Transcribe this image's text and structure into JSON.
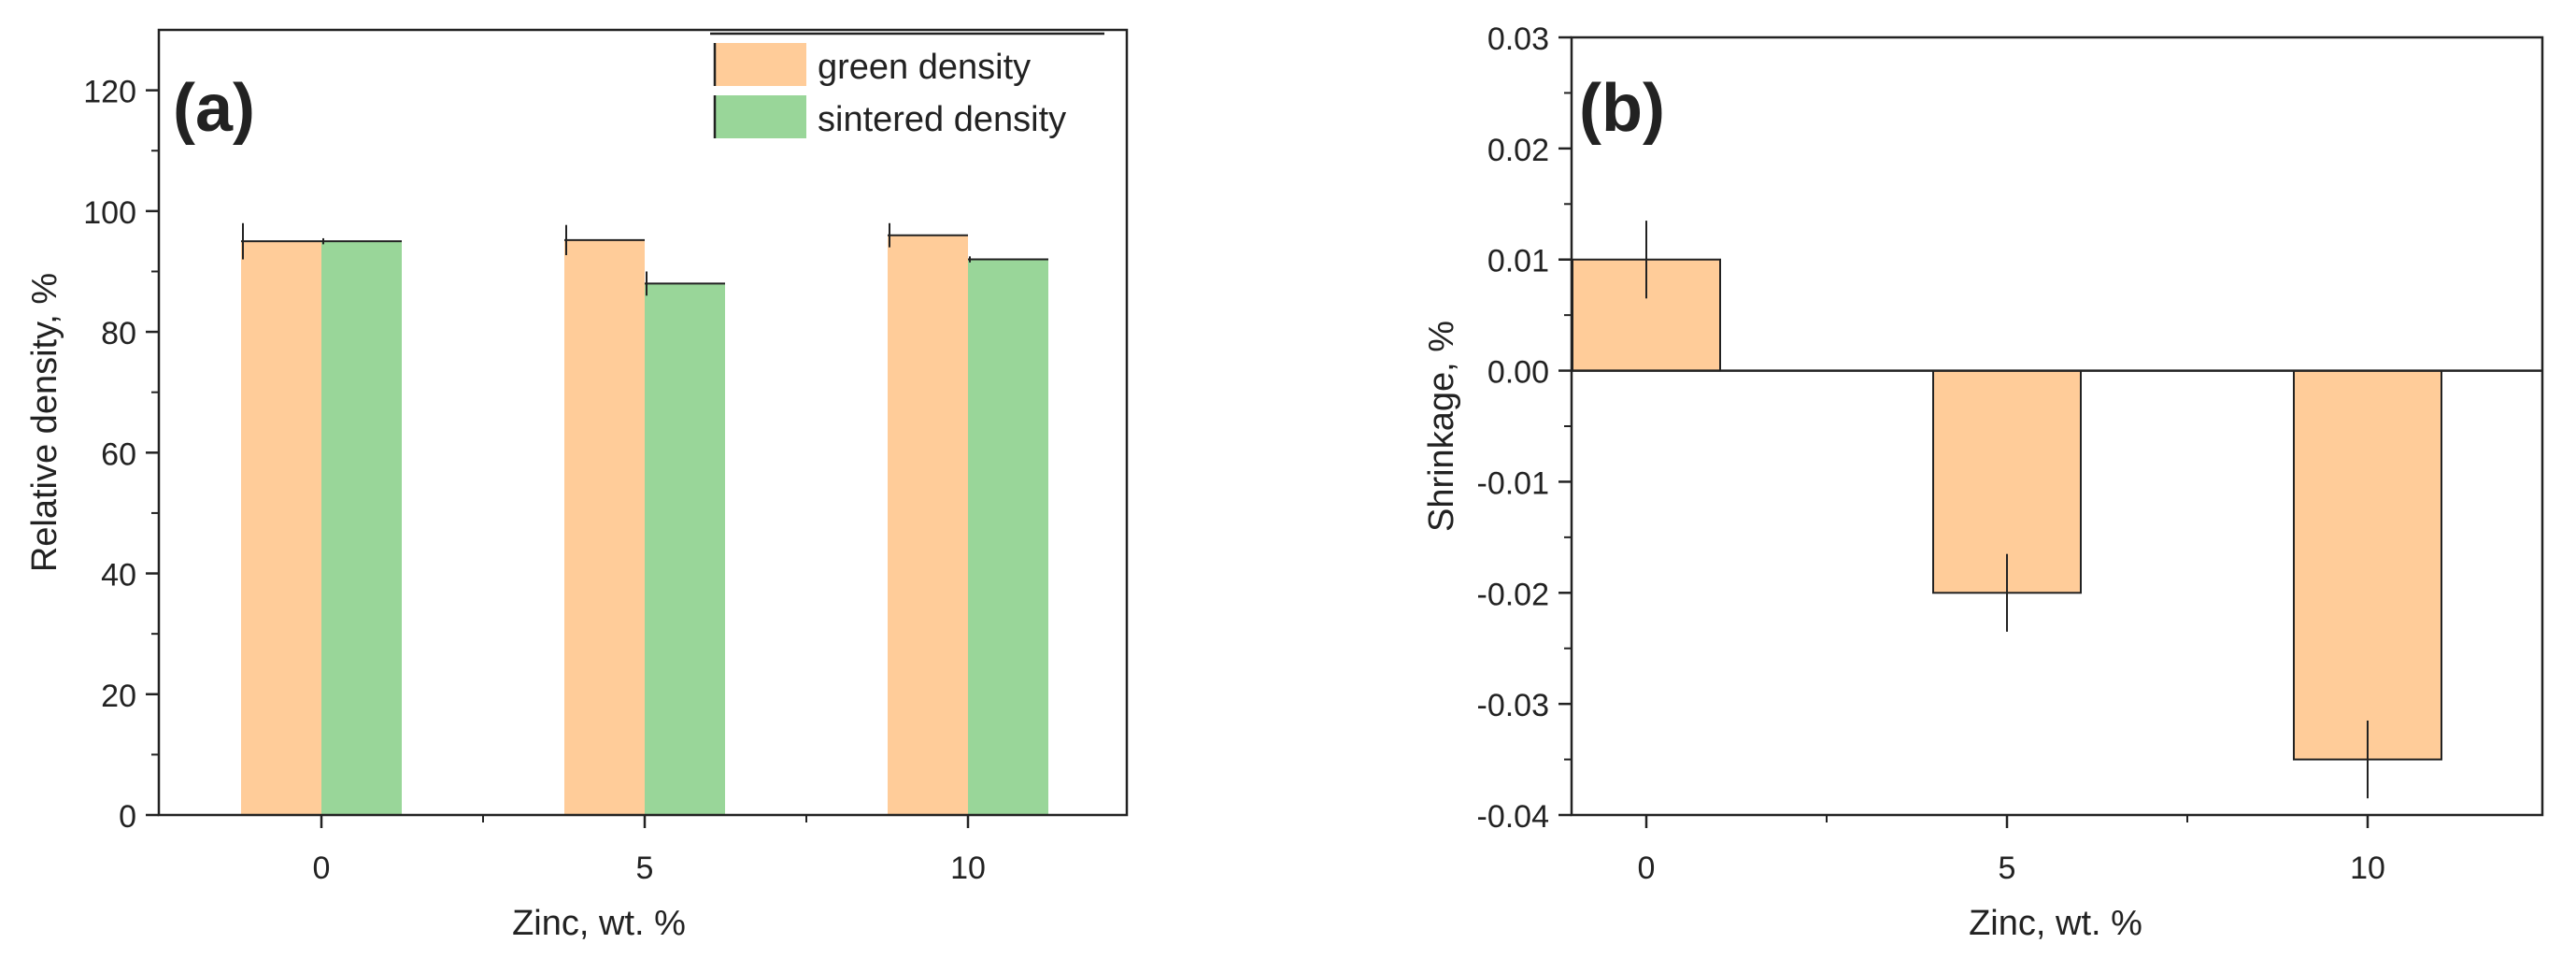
{
  "colors": {
    "green_density": "#FFCC99",
    "sintered_density": "#99D699",
    "shrinkage": "#FFCC99",
    "axis": "#222222"
  },
  "chart_data": [
    {
      "type": "bar",
      "panel_label": "(a)",
      "categories": [
        "0",
        "5",
        "10"
      ],
      "series": [
        {
          "name": "green density",
          "values": [
            95,
            95.2,
            96
          ],
          "errors": [
            3,
            2.5,
            2
          ]
        },
        {
          "name": "sintered density",
          "values": [
            95,
            88,
            92
          ],
          "errors": [
            0.5,
            2,
            0.5
          ]
        }
      ],
      "xlabel": "Zinc, wt. %",
      "ylabel": "Relative density, %",
      "ylim": [
        0,
        130
      ],
      "yticks": [
        "0",
        "20",
        "40",
        "60",
        "80",
        "100",
        "120"
      ],
      "legend": [
        "green density",
        "sintered density"
      ],
      "legend_position": "top-right"
    },
    {
      "type": "bar",
      "panel_label": "(b)",
      "categories": [
        "0",
        "5",
        "10"
      ],
      "series": [
        {
          "name": "shrinkage",
          "values": [
            0.01,
            -0.02,
            -0.035
          ],
          "errors": [
            0.0035,
            0.0035,
            0.0035
          ]
        }
      ],
      "xlabel": "Zinc, wt. %",
      "ylabel": "Shrinkage, %",
      "ylim": [
        -0.04,
        0.03
      ],
      "yticks": [
        "-0.04",
        "-0.03",
        "-0.02",
        "-0.01",
        "0.00",
        "0.01",
        "0.02",
        "0.03"
      ]
    }
  ]
}
